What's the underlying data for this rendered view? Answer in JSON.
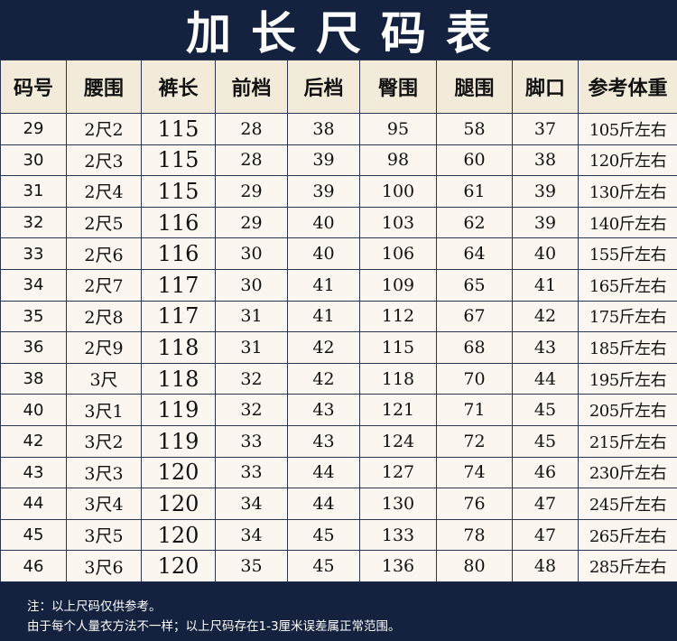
{
  "title": "加长尺码表",
  "headers": [
    "码号",
    "腰围",
    "裤长",
    "前档",
    "后档",
    "臀围",
    "腿围",
    "脚口",
    "参考体重"
  ],
  "rows": [
    [
      "29",
      "2尺2",
      "115",
      "28",
      "38",
      "95",
      "58",
      "37",
      "105斤左右"
    ],
    [
      "30",
      "2尺3",
      "115",
      "28",
      "39",
      "98",
      "60",
      "38",
      "120斤左右"
    ],
    [
      "31",
      "2尺4",
      "115",
      "29",
      "39",
      "100",
      "61",
      "39",
      "130斤左右"
    ],
    [
      "32",
      "2尺5",
      "116",
      "29",
      "40",
      "103",
      "62",
      "39",
      "140斤左右"
    ],
    [
      "33",
      "2尺6",
      "116",
      "30",
      "40",
      "106",
      "64",
      "40",
      "155斤左右"
    ],
    [
      "34",
      "2尺7",
      "117",
      "30",
      "41",
      "109",
      "65",
      "41",
      "165斤左右"
    ],
    [
      "35",
      "2尺8",
      "117",
      "31",
      "41",
      "112",
      "67",
      "42",
      "175斤左右"
    ],
    [
      "36",
      "2尺9",
      "118",
      "31",
      "42",
      "115",
      "68",
      "43",
      "185斤左右"
    ],
    [
      "38",
      "3尺",
      "118",
      "32",
      "42",
      "118",
      "70",
      "44",
      "195斤左右"
    ],
    [
      "40",
      "3尺1",
      "119",
      "32",
      "43",
      "121",
      "71",
      "45",
      "205斤左右"
    ],
    [
      "42",
      "3尺2",
      "119",
      "33",
      "43",
      "124",
      "72",
      "45",
      "215斤左右"
    ],
    [
      "43",
      "3尺3",
      "120",
      "33",
      "44",
      "127",
      "74",
      "46",
      "230斤左右"
    ],
    [
      "44",
      "3尺4",
      "120",
      "34",
      "44",
      "130",
      "76",
      "47",
      "245斤左右"
    ],
    [
      "45",
      "3尺5",
      "120",
      "34",
      "45",
      "133",
      "78",
      "47",
      "265斤左右"
    ],
    [
      "46",
      "3尺6",
      "120",
      "35",
      "45",
      "136",
      "80",
      "48",
      "285斤左右"
    ]
  ],
  "notes": [
    "注：以上尺码仅供参考。",
    "由于每个人量衣方法不一样；以上尺码存在1-3厘米误差属正常范围。"
  ],
  "colors": {
    "background": "#14223f",
    "cell": "#fbf7f0",
    "header": "#f3ebd9"
  }
}
